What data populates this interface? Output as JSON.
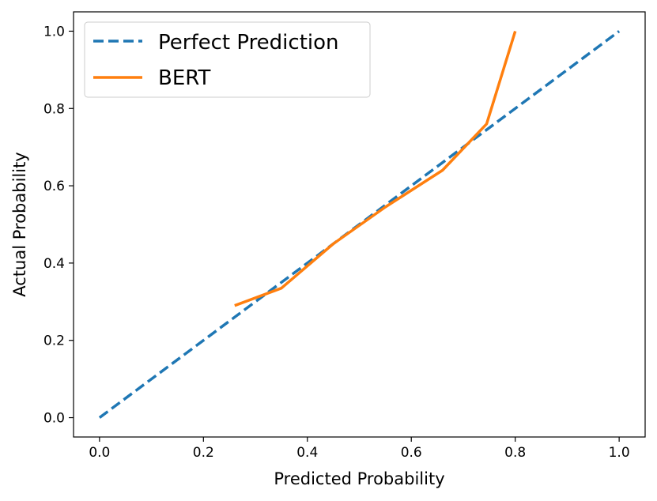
{
  "chart_data": {
    "type": "line",
    "xlabel": "Predicted Probability",
    "ylabel": "Actual Probability",
    "xlim": [
      -0.05,
      1.05
    ],
    "ylim": [
      -0.05,
      1.05
    ],
    "x_ticks": [
      "0.0",
      "0.2",
      "0.4",
      "0.6",
      "0.8",
      "1.0"
    ],
    "y_ticks": [
      "0.0",
      "0.2",
      "0.4",
      "0.6",
      "0.8",
      "1.0"
    ],
    "grid": false,
    "legend_position": "top-left",
    "series": [
      {
        "name": "Perfect Prediction",
        "style": "dashed",
        "color": "#1f77b4",
        "points": [
          [
            0.0,
            0.0
          ],
          [
            1.0,
            1.0
          ]
        ]
      },
      {
        "name": "BERT",
        "style": "solid",
        "color": "#ff7f0e",
        "points": [
          [
            0.26,
            0.29
          ],
          [
            0.35,
            0.335
          ],
          [
            0.45,
            0.45
          ],
          [
            0.55,
            0.545
          ],
          [
            0.66,
            0.64
          ],
          [
            0.745,
            0.76
          ],
          [
            0.8,
            1.0
          ]
        ]
      }
    ]
  }
}
